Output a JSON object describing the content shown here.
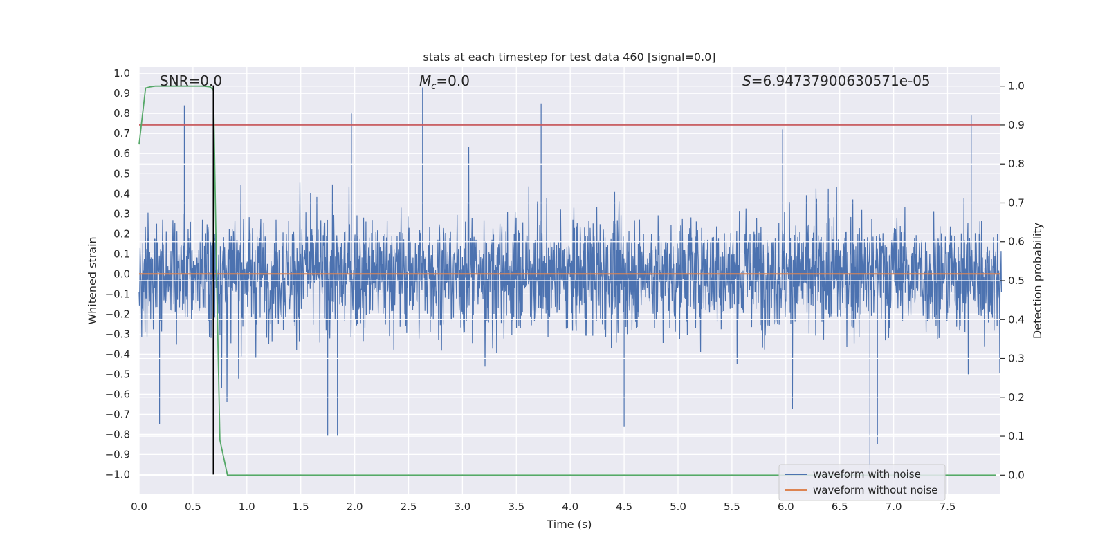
{
  "chart_data": {
    "type": "line",
    "title": "stats at each timestep for test data 460 [signal=0.0]",
    "xlabel": "Time (s)",
    "ylabel": "Whitened strain",
    "y2label": "Detection probability",
    "xlim": [
      0.0,
      8.0
    ],
    "ylim": [
      -1.09,
      1.03
    ],
    "y2lim": [
      -0.05,
      1.03
    ],
    "xticks": [
      "0.0",
      "0.5",
      "1.0",
      "1.5",
      "2.0",
      "2.5",
      "3.0",
      "3.5",
      "4.0",
      "4.5",
      "5.0",
      "5.5",
      "6.0",
      "6.5",
      "7.0",
      "7.5"
    ],
    "yticks": [
      "1.0",
      "0.9",
      "0.8",
      "0.7",
      "0.6",
      "0.5",
      "0.4",
      "0.3",
      "0.2",
      "0.1",
      "0.0",
      "−0.1",
      "−0.2",
      "−0.3",
      "−0.4",
      "−0.5",
      "−0.6",
      "−0.7",
      "−0.8",
      "−0.9",
      "−1.0"
    ],
    "y2ticks": [
      "1.0",
      "0.9",
      "0.8",
      "0.7",
      "0.6",
      "0.5",
      "0.4",
      "0.3",
      "0.2",
      "0.1",
      "0.0"
    ],
    "annotations": {
      "snr": "SNR=0.0",
      "mc_symbol": "M",
      "mc_sub": "c",
      "mc_value": "=0.0",
      "s_symbol": "S",
      "s_value": "=6.94737900630571e-05"
    },
    "threshold": {
      "value": 0.9,
      "axis": "right",
      "color": "#c44e52"
    },
    "marker_time": {
      "value": 0.69,
      "color": "#000000"
    },
    "series": [
      {
        "name": "waveform with noise",
        "color": "#4c72b0",
        "description": "noisy whitened strain over the full range, amplitude mostly within ±0.5 with spikes up to ±0.9"
      },
      {
        "name": "waveform without noise",
        "color": "#dd8452",
        "values_constant": 0.0
      },
      {
        "name": "detection probability",
        "axis": "right",
        "color": "#55a868",
        "x": [
          0.0,
          0.06,
          0.1,
          0.15,
          0.3,
          0.5,
          0.6,
          0.66,
          0.69,
          0.72,
          0.75,
          0.82,
          1.0,
          2.0,
          3.0,
          4.0,
          5.0,
          6.0,
          7.0,
          7.95
        ],
        "y": [
          0.85,
          0.995,
          0.998,
          1.0,
          1.0,
          1.0,
          1.0,
          0.998,
          0.99,
          0.5,
          0.09,
          0.0,
          0.0,
          0.0,
          0.0,
          0.0,
          0.0,
          0.0,
          0.0,
          0.0
        ]
      }
    ],
    "legend": {
      "position": "lower-right",
      "entries": [
        {
          "label": "waveform with noise",
          "color": "#4c72b0"
        },
        {
          "label": "waveform without noise",
          "color": "#dd8452"
        }
      ]
    },
    "colors": {
      "plot_bg": "#eaeaf2",
      "grid": "#ffffff"
    }
  }
}
